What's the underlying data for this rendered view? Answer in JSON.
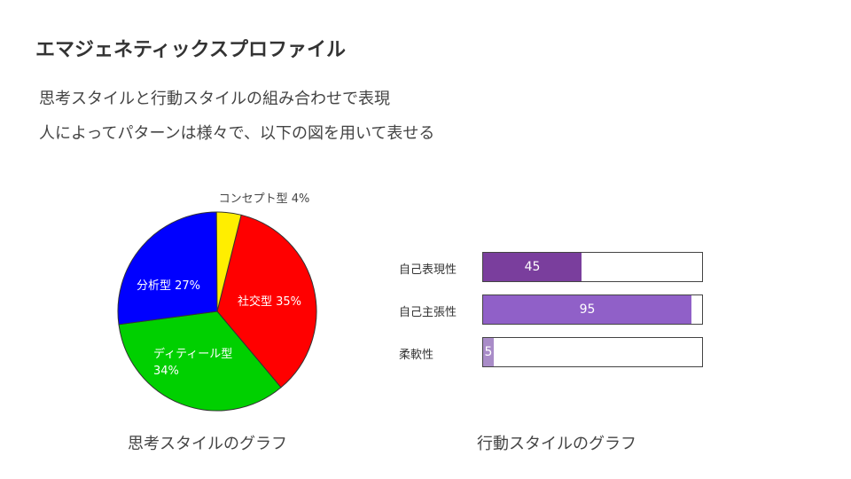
{
  "slide": {
    "title": "エマジェネティックスプロファイル",
    "lines": [
      "思考スタイルと行動スタイルの組み合わせで表現",
      "人によってパターンは様々で、以下の図を用いて表せる"
    ],
    "caption_left": "思考スタイルのグラフ",
    "caption_right": "行動スタイルのグラフ"
  },
  "chart_data": [
    {
      "type": "pie",
      "slices": [
        {
          "label": "社交型",
          "value": 35,
          "display": "社交型 35%",
          "color": "#ff0000"
        },
        {
          "label": "ディティール型",
          "value": 34,
          "display_line1": "ディティール型",
          "display_line2": "34%",
          "color": "#00d000"
        },
        {
          "label": "分析型",
          "value": 27,
          "display": "分析型 27%",
          "color": "#0000ff"
        },
        {
          "label": "コンセプト型",
          "value": 4,
          "display": "コンセプト型 4%",
          "color": "#ffee00"
        }
      ]
    },
    {
      "type": "bar",
      "orientation": "horizontal",
      "xlim": [
        0,
        100
      ],
      "categories": [
        "自己表現性",
        "自己主張性",
        "柔軟性"
      ],
      "values": [
        45,
        95,
        5
      ],
      "labels": [
        "45",
        "95",
        "5"
      ],
      "colors": [
        "#7a3e9d",
        "#9060c8",
        "#a98cc8"
      ]
    }
  ]
}
